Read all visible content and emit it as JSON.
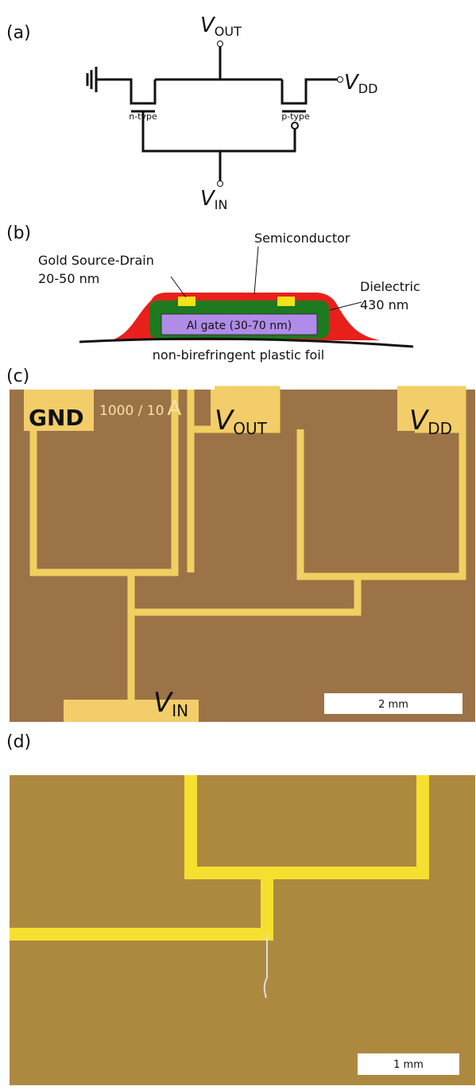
{
  "panel_a": {
    "label": "(a)",
    "v_out": {
      "symbol": "V",
      "subscript": "OUT"
    },
    "v_dd": {
      "symbol": "V",
      "subscript": "DD"
    },
    "v_in": {
      "symbol": "V",
      "subscript": "IN"
    },
    "n_type": "n-type",
    "p_type": "p-type"
  },
  "panel_b": {
    "label": "(b)",
    "semiconductor": "Semiconductor",
    "gold": [
      "Gold Source-Drain",
      "20-50 nm"
    ],
    "dielectric": [
      "Dielectric",
      "430 nm"
    ],
    "gate": "Al gate (30-70 nm)",
    "foil": "non-birefringent plastic foil"
  },
  "panel_c": {
    "label": "(c)",
    "gnd": "GND",
    "ratio": "1000 / 10",
    "ratio_unit": "A",
    "v_out": {
      "symbol": "V",
      "subscript": "OUT"
    },
    "v_dd": {
      "symbol": "V",
      "subscript": "DD"
    },
    "v_in": {
      "symbol": "V",
      "subscript": "IN"
    },
    "scale": "2 mm"
  },
  "panel_d": {
    "label": "(d)",
    "scale": "1 mm"
  }
}
